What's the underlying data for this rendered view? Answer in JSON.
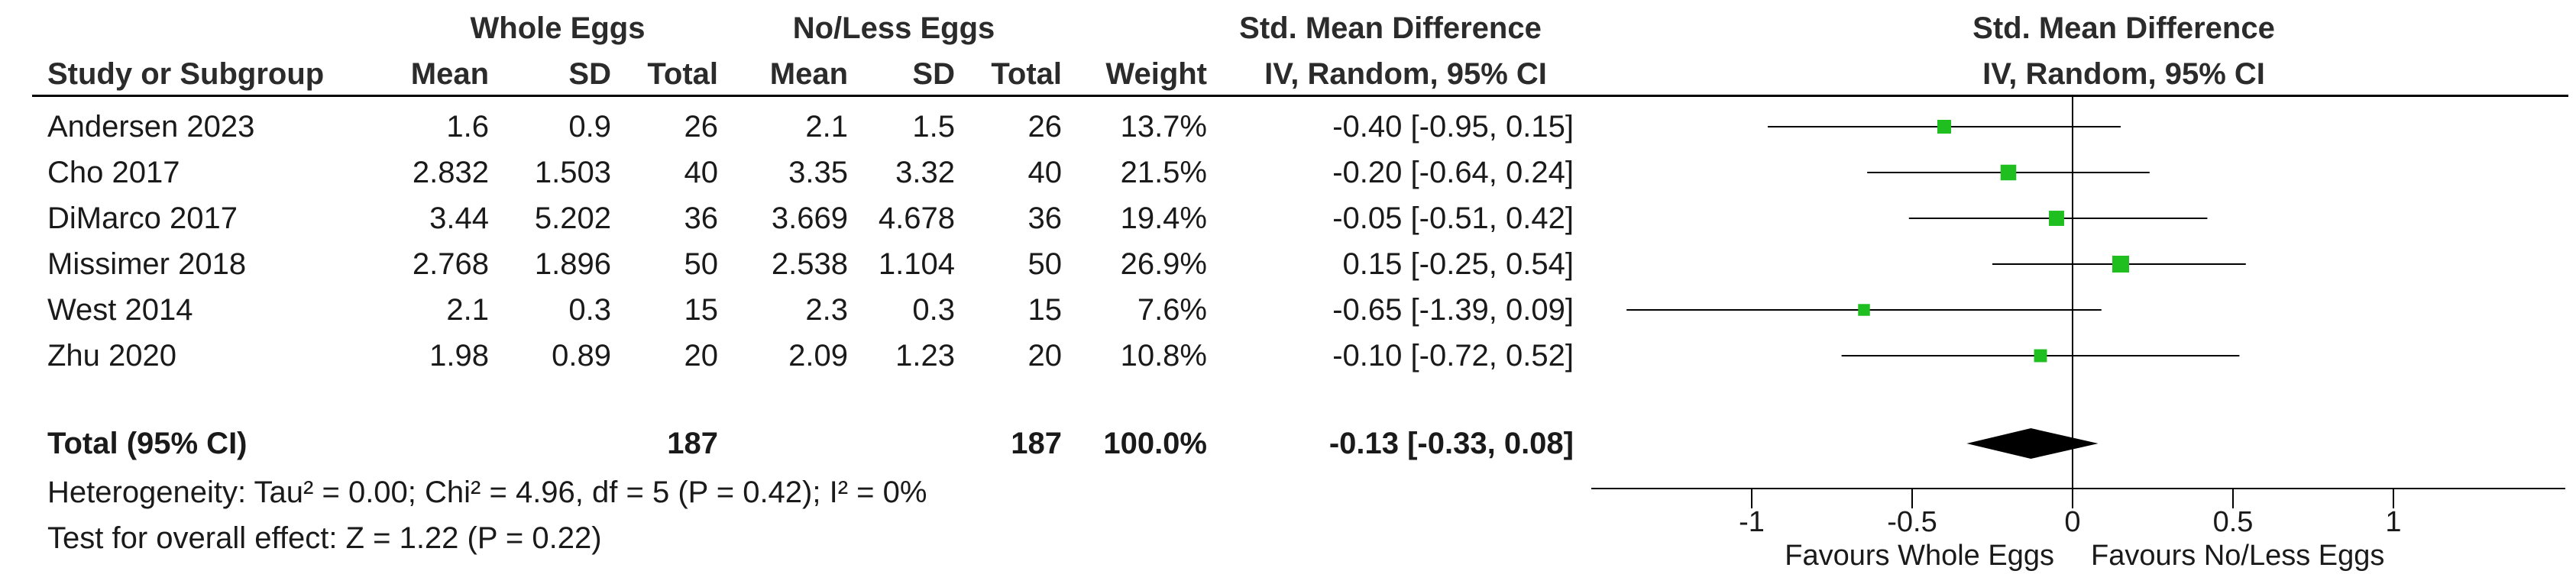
{
  "columns": {
    "group_whole": "Whole Eggs",
    "group_noless": "No/Less Eggs",
    "effect_header_1": "Std. Mean Difference",
    "effect_header_2": "IV, Random, 95% CI",
    "plot_header_1": "Std. Mean Difference",
    "plot_header_2": "IV, Random, 95% CI",
    "study": "Study or Subgroup",
    "mean": "Mean",
    "sd": "SD",
    "total": "Total",
    "weight": "Weight"
  },
  "studies": [
    {
      "name": "Andersen 2023",
      "we_mean": "1.6",
      "we_sd": "0.9",
      "we_total": "26",
      "nl_mean": "2.1",
      "nl_sd": "1.5",
      "nl_total": "26",
      "weight": "13.7%",
      "ci_text": "-0.40 [-0.95, 0.15]"
    },
    {
      "name": "Cho 2017",
      "we_mean": "2.832",
      "we_sd": "1.503",
      "we_total": "40",
      "nl_mean": "3.35",
      "nl_sd": "3.32",
      "nl_total": "40",
      "weight": "21.5%",
      "ci_text": "-0.20 [-0.64, 0.24]"
    },
    {
      "name": "DiMarco 2017",
      "we_mean": "3.44",
      "we_sd": "5.202",
      "we_total": "36",
      "nl_mean": "3.669",
      "nl_sd": "4.678",
      "nl_total": "36",
      "weight": "19.4%",
      "ci_text": "-0.05 [-0.51, 0.42]"
    },
    {
      "name": "Missimer 2018",
      "we_mean": "2.768",
      "we_sd": "1.896",
      "we_total": "50",
      "nl_mean": "2.538",
      "nl_sd": "1.104",
      "nl_total": "50",
      "weight": "26.9%",
      "ci_text": "0.15 [-0.25, 0.54]"
    },
    {
      "name": "West 2014",
      "we_mean": "2.1",
      "we_sd": "0.3",
      "we_total": "15",
      "nl_mean": "2.3",
      "nl_sd": "0.3",
      "nl_total": "15",
      "weight": "7.6%",
      "ci_text": "-0.65 [-1.39, 0.09]"
    },
    {
      "name": "Zhu 2020",
      "we_mean": "1.98",
      "we_sd": "0.89",
      "we_total": "20",
      "nl_mean": "2.09",
      "nl_sd": "1.23",
      "nl_total": "20",
      "weight": "10.8%",
      "ci_text": "-0.10 [-0.72, 0.52]"
    }
  ],
  "total": {
    "label": "Total (95% CI)",
    "we_total": "187",
    "nl_total": "187",
    "weight": "100.0%",
    "ci_text": "-0.13 [-0.33, 0.08]"
  },
  "heterogeneity": "Heterogeneity: Tau² = 0.00; Chi² = 4.96, df = 5 (P = 0.42); I² = 0%",
  "overall_effect": "Test for overall effect: Z = 1.22 (P = 0.22)",
  "colors": {
    "marker": "#1fbf1f",
    "diamond": "#000000",
    "line": "#000000"
  },
  "chart_data": {
    "type": "forest",
    "title": "Std. Mean Difference IV, Random, 95% CI",
    "studies": [
      {
        "name": "Andersen 2023",
        "estimate": -0.4,
        "lower": -0.95,
        "upper": 0.15,
        "weight": 13.7
      },
      {
        "name": "Cho 2017",
        "estimate": -0.2,
        "lower": -0.64,
        "upper": 0.24,
        "weight": 21.5
      },
      {
        "name": "DiMarco 2017",
        "estimate": -0.05,
        "lower": -0.51,
        "upper": 0.42,
        "weight": 19.4
      },
      {
        "name": "Missimer 2018",
        "estimate": 0.15,
        "lower": -0.25,
        "upper": 0.54,
        "weight": 26.9
      },
      {
        "name": "West 2014",
        "estimate": -0.65,
        "lower": -1.39,
        "upper": 0.09,
        "weight": 7.6
      },
      {
        "name": "Zhu 2020",
        "estimate": -0.1,
        "lower": -0.72,
        "upper": 0.52,
        "weight": 10.8
      }
    ],
    "pooled": {
      "estimate": -0.13,
      "lower": -0.33,
      "upper": 0.08
    },
    "xlim": [
      -1.5,
      1.5
    ],
    "ticks": [
      -1,
      -0.5,
      0,
      0.5,
      1
    ],
    "tick_labels": [
      "-1",
      "-0.5",
      "0",
      "0.5",
      "1"
    ],
    "favours_left": "Favours Whole Eggs",
    "favours_right": "Favours No/Less Eggs"
  }
}
